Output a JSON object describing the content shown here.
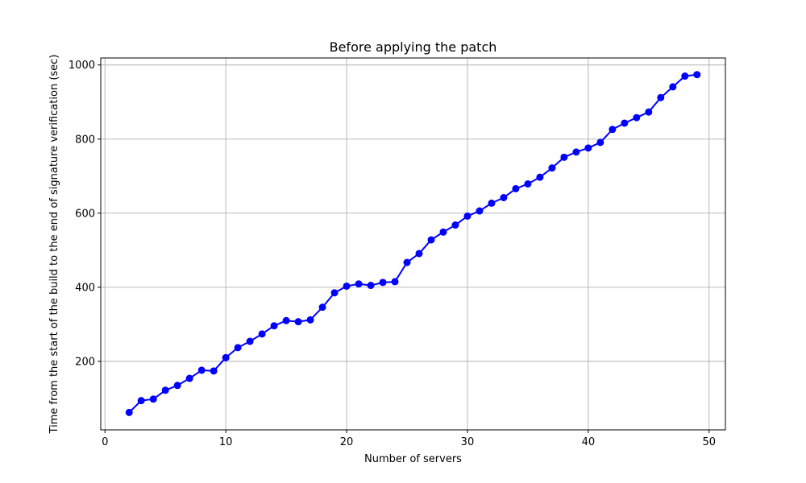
{
  "chart_data": {
    "type": "line",
    "title": "Before applying the patch",
    "xlabel": "Number of servers",
    "ylabel": "Time from the start of the build to the end of signature verification (sec)",
    "xlim": [
      -0.35,
      51.35
    ],
    "ylim": [
      15,
      1019
    ],
    "xticks": [
      0,
      10,
      20,
      30,
      40,
      50
    ],
    "yticks": [
      200,
      400,
      600,
      800,
      1000
    ],
    "grid": true,
    "marker": "circle",
    "series": [
      {
        "color": "#0000ff",
        "x": [
          2,
          3,
          4,
          5,
          6,
          7,
          8,
          9,
          10,
          11,
          12,
          13,
          14,
          15,
          16,
          17,
          18,
          19,
          20,
          21,
          22,
          23,
          24,
          25,
          26,
          27,
          28,
          29,
          30,
          31,
          32,
          33,
          34,
          35,
          36,
          37,
          38,
          39,
          40,
          41,
          42,
          43,
          44,
          45,
          46,
          47,
          48,
          49
        ],
        "y": [
          62,
          94,
          98,
          122,
          135,
          154,
          176,
          174,
          210,
          237,
          254,
          274,
          296,
          310,
          307,
          312,
          346,
          385,
          403,
          409,
          405,
          413,
          415,
          467,
          491,
          528,
          549,
          568,
          592,
          606,
          627,
          642,
          666,
          679,
          697,
          722,
          751,
          765,
          776,
          791,
          826,
          843,
          858,
          873,
          912,
          941,
          970,
          974
        ]
      }
    ]
  }
}
